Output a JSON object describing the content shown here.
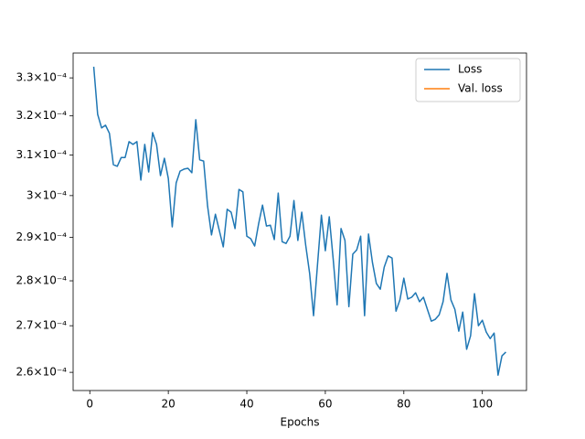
{
  "chart_data": {
    "type": "line",
    "x_label": "Epochs",
    "yscale": "log",
    "legend": "upper right",
    "grid": false,
    "xlim": [
      -4.25,
      111.25
    ],
    "xticks": [
      0,
      20,
      40,
      60,
      80,
      100
    ],
    "ylim": [
      0.0002562,
      0.0003367
    ],
    "yticks": [
      {
        "value": 0.00026,
        "label": "2.6×10⁻⁴"
      },
      {
        "value": 0.00027,
        "label": "2.7×10⁻⁴"
      },
      {
        "value": 0.00028,
        "label": "2.8×10⁻⁴"
      },
      {
        "value": 0.00029,
        "label": "2.9×10⁻⁴"
      },
      {
        "value": 0.0003,
        "label": "3×10⁻⁴"
      },
      {
        "value": 0.00031,
        "label": "3.1×10⁻⁴"
      },
      {
        "value": 0.00032,
        "label": "3.2×10⁻⁴"
      },
      {
        "value": 0.00033,
        "label": "3.3×10⁻⁴"
      }
    ],
    "x": [
      1,
      2,
      3,
      4,
      5,
      6,
      7,
      8,
      9,
      10,
      11,
      12,
      13,
      14,
      15,
      16,
      17,
      18,
      19,
      20,
      21,
      22,
      23,
      24,
      25,
      26,
      27,
      28,
      29,
      30,
      31,
      32,
      33,
      34,
      35,
      36,
      37,
      38,
      39,
      40,
      41,
      42,
      43,
      44,
      45,
      46,
      47,
      48,
      49,
      50,
      51,
      52,
      53,
      54,
      55,
      56,
      57,
      58,
      59,
      60,
      61,
      62,
      63,
      64,
      65,
      66,
      67,
      68,
      69,
      70,
      71,
      72,
      73,
      74,
      75,
      76,
      77,
      78,
      79,
      80,
      81,
      82,
      83,
      84,
      85,
      86,
      87,
      88,
      89,
      90,
      91,
      92,
      93,
      94,
      95,
      96,
      97,
      98,
      99,
      100,
      101,
      102,
      103,
      104,
      105,
      106
    ],
    "series": [
      {
        "name": "Loss",
        "color": "#1f77b4",
        "values": [
          0.000333,
          0.0003204,
          0.0003169,
          0.0003176,
          0.0003155,
          0.0003076,
          0.0003072,
          0.0003094,
          0.0003094,
          0.0003134,
          0.0003127,
          0.0003134,
          0.0003038,
          0.0003127,
          0.0003058,
          0.0003157,
          0.0003127,
          0.0003049,
          0.0003092,
          0.0003042,
          0.0002925,
          0.0003031,
          0.000306,
          0.0003065,
          0.0003067,
          0.0003056,
          0.000319,
          0.0003088,
          0.0003085,
          0.0002975,
          0.0002906,
          0.0002955,
          0.0002916,
          0.0002878,
          0.0002967,
          0.000296,
          0.0002921,
          0.0003015,
          0.0003009,
          0.0002903,
          0.0002897,
          0.000288,
          0.0002932,
          0.0002977,
          0.0002927,
          0.0002929,
          0.0002895,
          0.0003006,
          0.000289,
          0.0002886,
          0.0002903,
          0.0002988,
          0.0002893,
          0.000296,
          0.0002882,
          0.0002817,
          0.0002722,
          0.0002836,
          0.0002953,
          0.0002869,
          0.0002949,
          0.000285,
          0.0002746,
          0.0002921,
          0.0002893,
          0.0002742,
          0.0002861,
          0.0002871,
          0.0002903,
          0.0002722,
          0.0002908,
          0.0002842,
          0.0002794,
          0.0002781,
          0.0002831,
          0.0002857,
          0.0002852,
          0.0002732,
          0.0002757,
          0.0002806,
          0.0002759,
          0.0002763,
          0.0002773,
          0.0002753,
          0.0002763,
          0.0002736,
          0.000271,
          0.0002714,
          0.0002724,
          0.0002753,
          0.0002817,
          0.0002757,
          0.0002736,
          0.0002688,
          0.000273,
          0.0002649,
          0.0002678,
          0.0002771,
          0.00027,
          0.0002712,
          0.0002686,
          0.0002672,
          0.0002684,
          0.0002594,
          0.0002635,
          0.0002643
        ]
      },
      {
        "name": "Val. loss",
        "color": "#ff7f0e",
        "values": [
          null,
          null,
          null,
          null,
          null,
          null,
          null,
          null,
          null,
          null,
          null,
          null,
          null,
          null,
          null,
          null,
          null,
          null,
          null,
          null,
          null,
          null,
          null,
          null,
          null,
          null,
          null,
          null,
          null,
          null,
          null,
          null,
          null,
          null,
          null,
          null,
          null,
          null,
          null,
          null,
          null,
          null,
          null,
          null,
          null,
          null,
          null,
          null,
          null,
          null,
          null,
          null,
          null,
          null,
          null,
          null,
          null,
          null,
          null,
          null,
          null,
          null,
          null,
          null,
          null,
          null,
          null,
          null,
          null,
          null,
          null,
          null,
          null,
          null,
          null,
          null,
          null,
          null,
          null,
          null,
          null,
          null,
          null,
          null,
          null,
          null,
          null,
          null,
          null,
          null,
          null,
          null,
          null,
          null,
          null,
          null,
          null,
          null,
          null,
          null,
          null,
          null,
          null,
          null,
          null,
          null
        ]
      }
    ]
  }
}
